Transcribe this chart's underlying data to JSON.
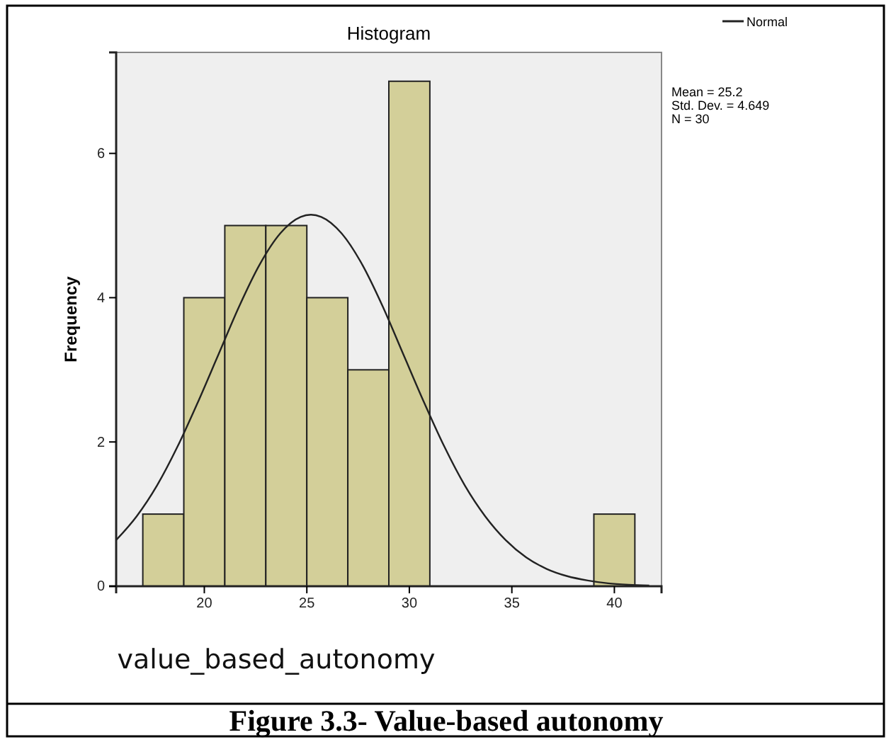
{
  "chart_data": {
    "type": "histogram",
    "title": "Histogram",
    "xlabel": "value_based_autonomy",
    "ylabel": "Frequency",
    "bins": [
      17,
      19,
      21,
      23,
      25,
      27,
      29,
      31,
      33,
      35,
      37,
      39,
      41
    ],
    "values": [
      1,
      4,
      5,
      5,
      4,
      3,
      7,
      0,
      0,
      0,
      0,
      1
    ],
    "color": "#d3cf99",
    "series": [
      {
        "type": "line",
        "name": "Normal",
        "color": "#222222",
        "x": [
          15.7,
          16.7,
          17.7,
          18.7,
          19.7,
          20.7,
          21.7,
          22.7,
          23.7,
          24.7,
          25.2,
          25.7,
          26.7,
          27.7,
          28.7,
          29.7,
          30.7,
          31.7,
          32.7,
          33.7,
          34.7,
          35.7,
          36.7,
          37.7,
          38.7,
          39.7,
          40.7,
          41.7
        ],
        "values": [
          0.64,
          0.97,
          1.4,
          1.94,
          2.56,
          3.22,
          3.88,
          4.46,
          4.89,
          5.12,
          5.15,
          5.12,
          4.89,
          4.46,
          3.88,
          3.22,
          2.56,
          1.94,
          1.4,
          0.97,
          0.64,
          0.4,
          0.24,
          0.14,
          0.08,
          0.04,
          0.02,
          0.01
        ]
      }
    ],
    "xlim": [
      15.7,
      42.3
    ],
    "ylim": [
      0,
      7.4
    ],
    "xticks": [
      20,
      25,
      30,
      35,
      40
    ],
    "yticks": [
      0,
      2,
      4,
      6
    ],
    "grid": false,
    "legend": "top right",
    "annotations": [
      "Mean = 25.2",
      "Std. Dev. = 4.649",
      "N = 30",
      "Figure 3.3- Value-based autonomy"
    ]
  }
}
